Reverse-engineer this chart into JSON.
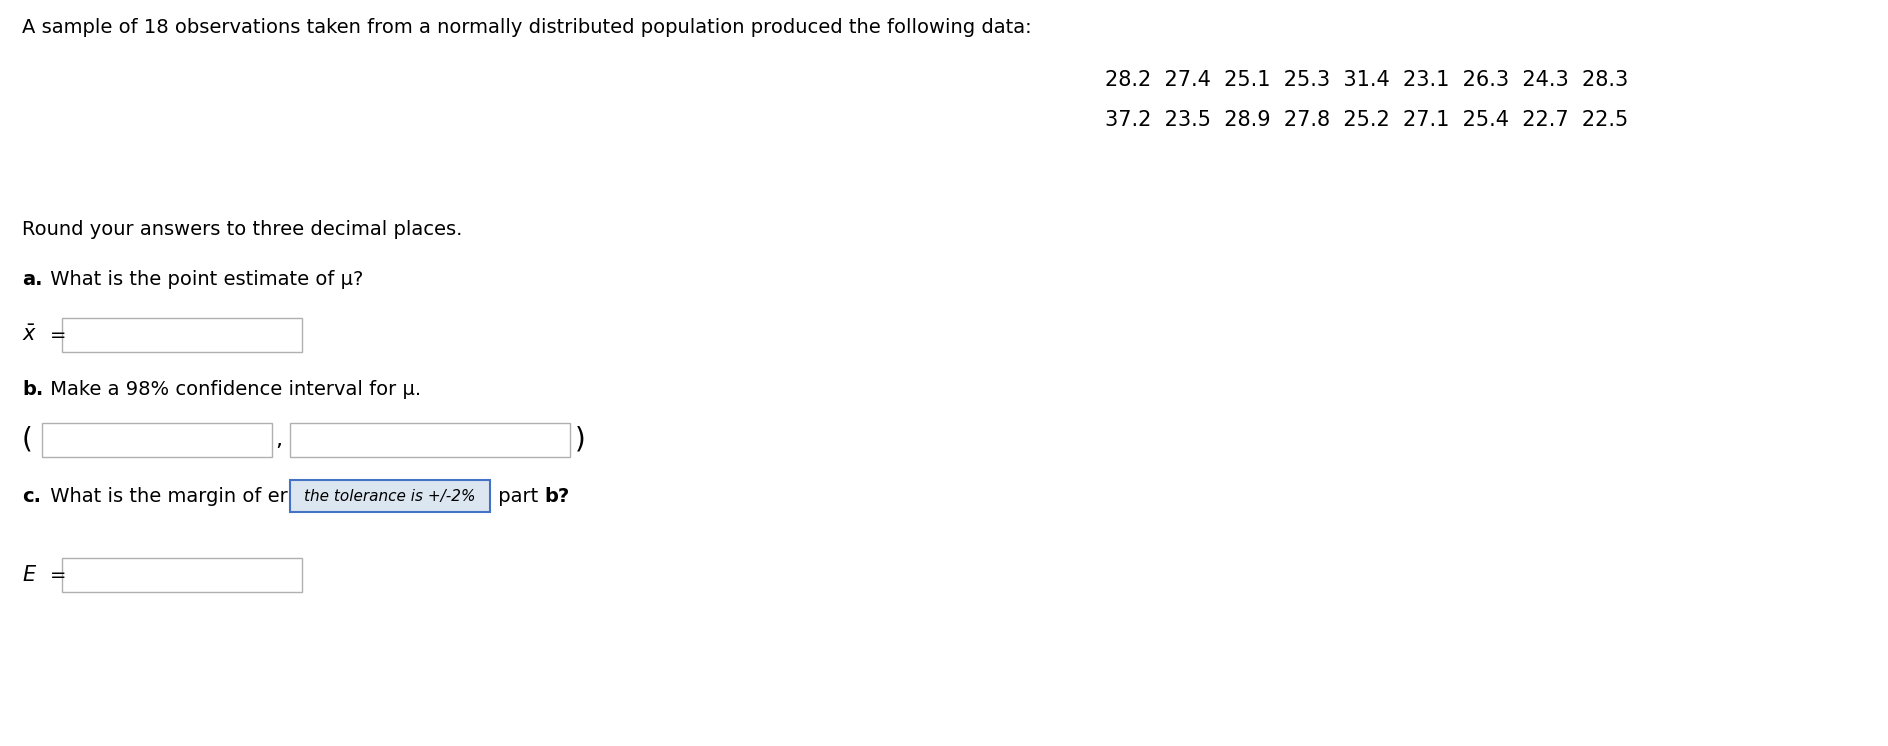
{
  "bg_color": "#ffffff",
  "title_text": "A sample of 18 observations taken from a normally distributed population produced the following data:",
  "data_line1": "28.2  27.4  25.1  25.3  31.4  23.1  26.3  24.3  28.3",
  "data_line2": "37.2  23.5  28.9  27.8  25.2  27.1  25.4  22.7  22.5",
  "round_text": "Round your answers to three decimal places.",
  "part_a_label": "a.",
  "part_a_text": " What is the point estimate of μ?",
  "part_b_label": "b.",
  "part_b_text": " Make a 98% confidence interval for μ.",
  "part_c_label": "c.",
  "part_c_text": " What is the margin of er",
  "part_c_suffix": " part ",
  "part_c_bold": "b?",
  "tooltip_text": "the tolerance is +/-2%",
  "e_label": "E =",
  "box_edge_color": "#b0b0b0",
  "tooltip_edge_color": "#4472c4",
  "tooltip_fill_color": "#dce6f1",
  "font_size": 14,
  "data_font_size": 15
}
